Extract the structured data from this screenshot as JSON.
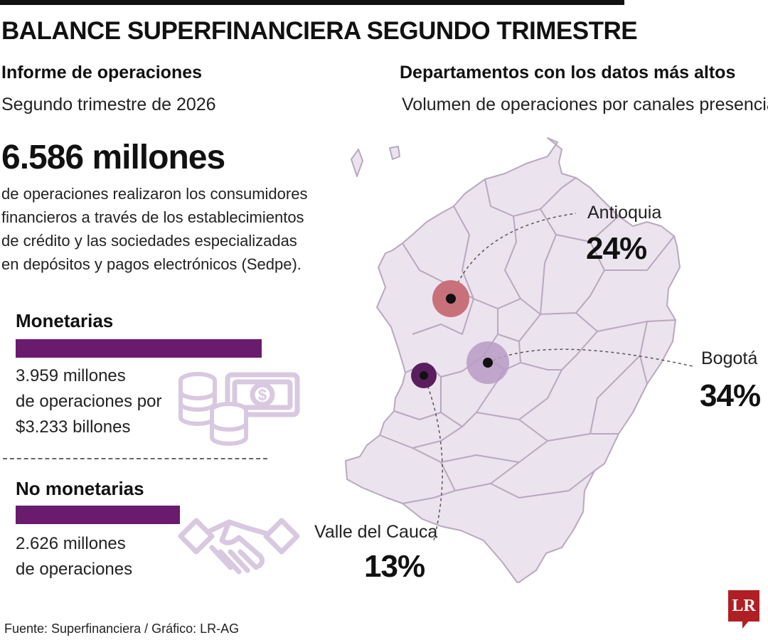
{
  "header": {
    "title": "BALANCE SUPERFINANCIERA SEGUNDO TRIMESTRE"
  },
  "left": {
    "heading": "Informe de operaciones",
    "subheading": "Segundo trimestre de 2026",
    "total": "6.586 millones",
    "description_lines": [
      "de operaciones realizaron los consumidores",
      "financieros a través de los establecimientos",
      "de crédito y las sociedades especializadas",
      "en depósitos y pagos electrónicos (Sedpe)."
    ],
    "categories": [
      {
        "label": "Monetarias",
        "value_millions": 3959,
        "detail_lines": [
          "3.959 millones",
          "de operaciones por",
          "$3.233 billones"
        ],
        "icon": "coins-and-banknote-icon"
      },
      {
        "label": "No monetarias",
        "value_millions": 2626,
        "detail_lines": [
          "2.626 millones",
          "de operaciones"
        ],
        "icon": "handshake-icon"
      }
    ]
  },
  "right": {
    "heading": "Departamentos con los datos más altos",
    "subheading": "Volumen de operaciones por canales presenciales",
    "departments": [
      {
        "name": "Antioquia",
        "percent": "24%",
        "color": "#c8717a"
      },
      {
        "name": "Bogotá",
        "percent": "34%",
        "color": "#b89bc4"
      },
      {
        "name": "Valle del Cauca",
        "percent": "13%",
        "color": "#5a1e5e"
      }
    ],
    "map_fill": "#ebe3ee",
    "map_stroke": "#b9a8bf"
  },
  "footer": {
    "source": "Fuente: Superfinanciera / Gráfico: LR-AG",
    "logo": "LR"
  },
  "colors": {
    "accent": "#6a1b6e",
    "icon": "#d8c8e0",
    "brand": "#b01f24"
  }
}
